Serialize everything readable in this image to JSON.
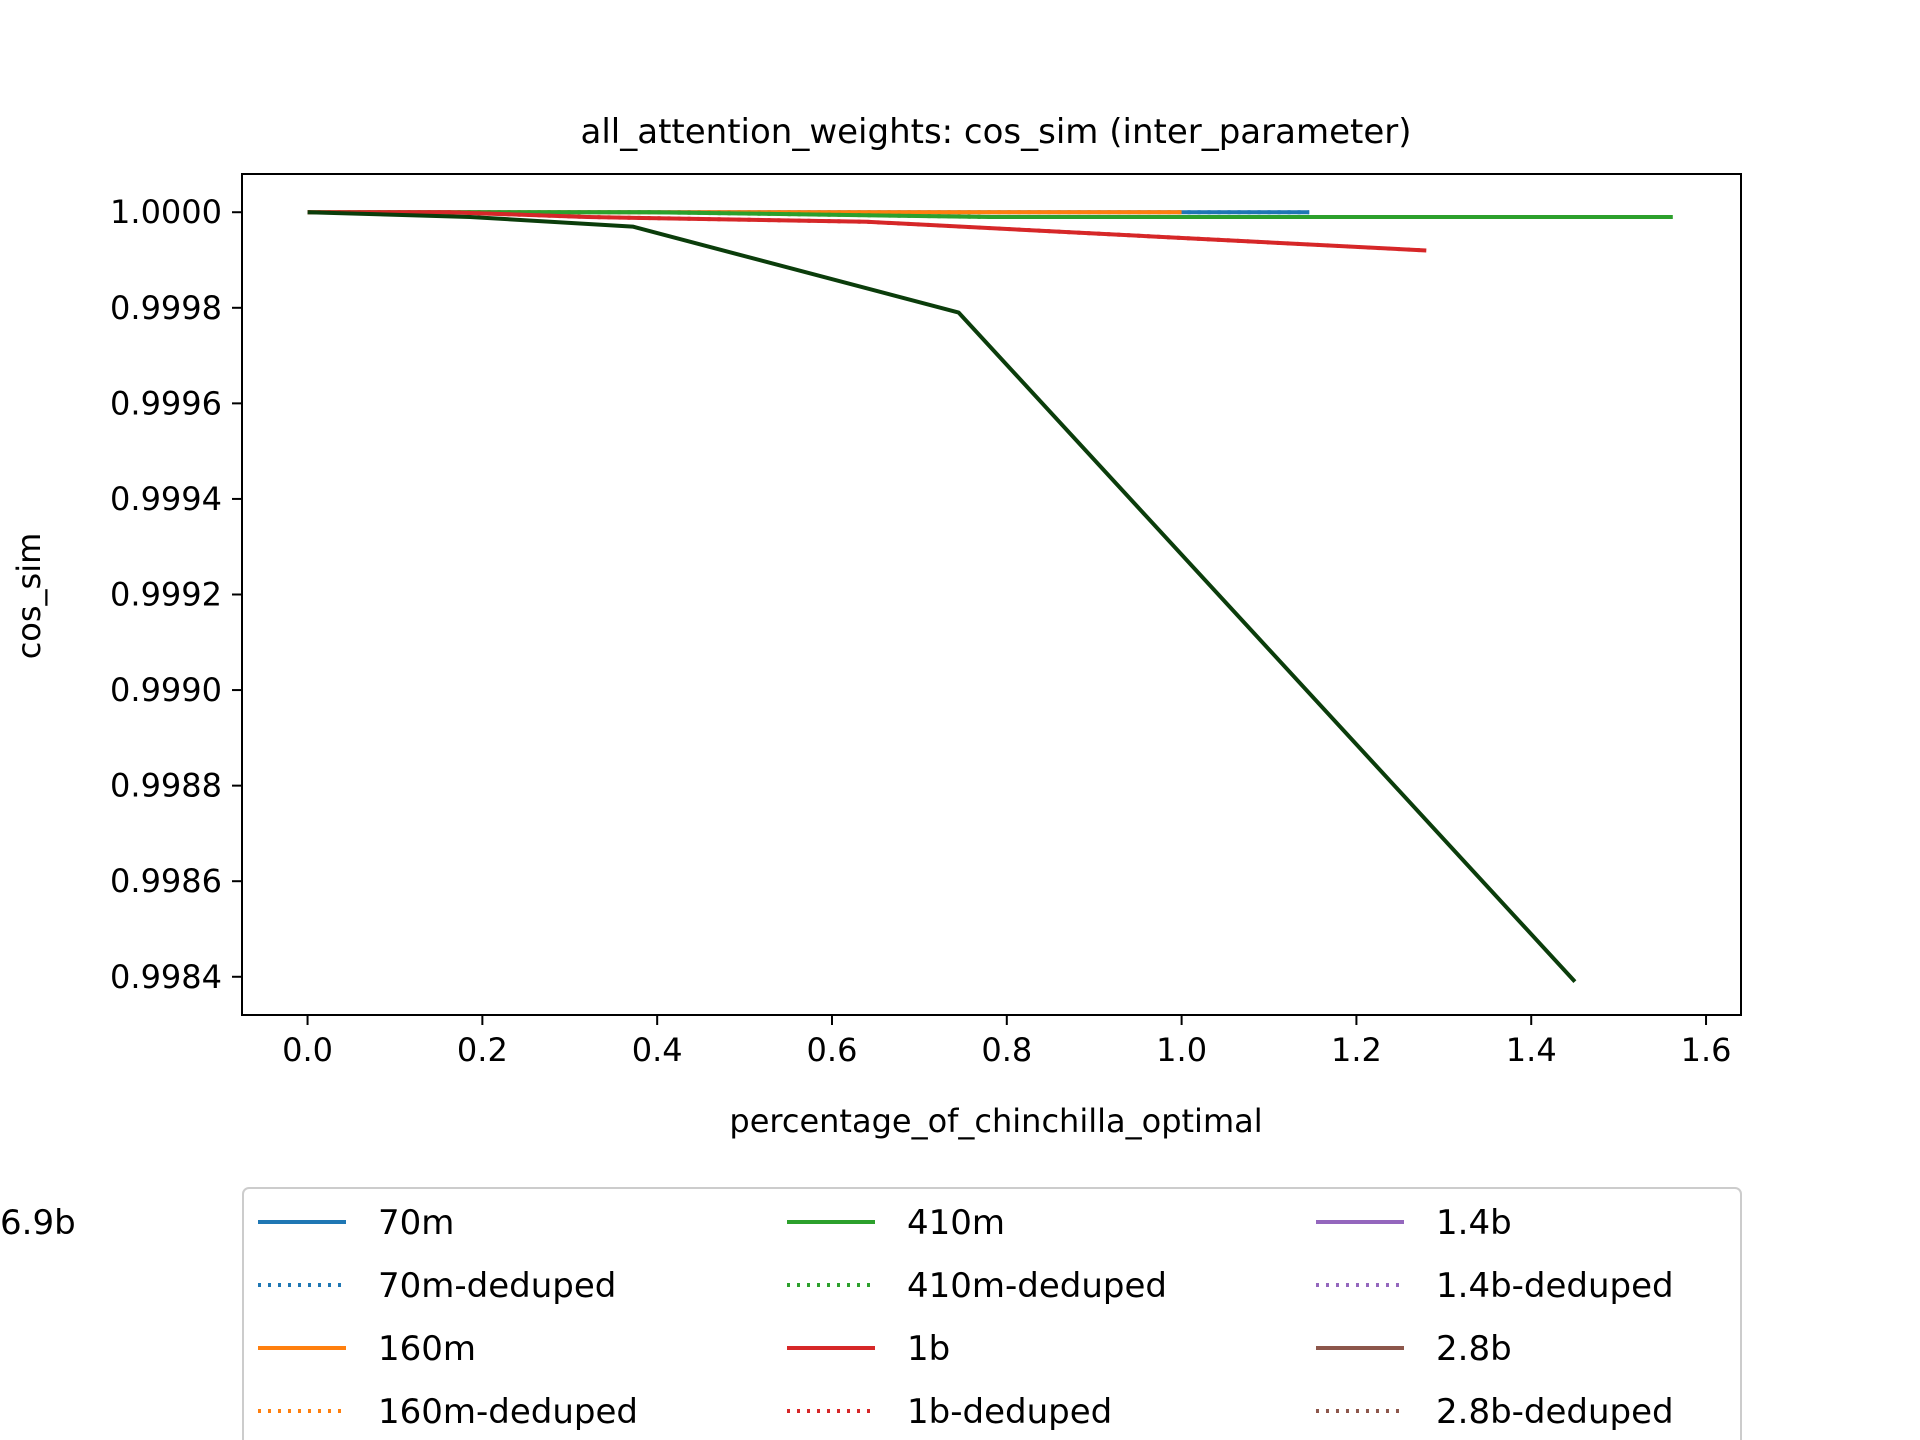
{
  "chart_data": {
    "type": "line",
    "title": "all_attention_weights: cos_sim (inter_parameter)",
    "xlabel": "percentage_of_chinchilla_optimal",
    "ylabel": "cos_sim",
    "xlim": [
      -0.075,
      1.64
    ],
    "ylim": [
      0.99832,
      1.00008
    ],
    "xticks": [
      0.0,
      0.2,
      0.4,
      0.6,
      0.8,
      1.0,
      1.2,
      1.4,
      1.6
    ],
    "xtick_labels": [
      "0.0",
      "0.2",
      "0.4",
      "0.6",
      "0.8",
      "1.0",
      "1.2",
      "1.4",
      "1.6"
    ],
    "yticks": [
      1.0,
      0.9998,
      0.9996,
      0.9994,
      0.9992,
      0.999,
      0.9988,
      0.9986,
      0.9984
    ],
    "ytick_labels": [
      "1.0000",
      "0.9998",
      "0.9996",
      "0.9994",
      "0.9992",
      "0.9990",
      "0.9988",
      "0.9986",
      "0.9984"
    ],
    "grid": false,
    "legend": {
      "placement": "below",
      "columns": 3
    },
    "series": [
      {
        "name": "70m",
        "color": "#1f77b4",
        "style": "solid",
        "x": [
          0.0,
          0.143,
          0.287,
          0.573,
          1.146
        ],
        "y": [
          1.0,
          1.0,
          1.0,
          1.0,
          1.0
        ]
      },
      {
        "name": "70m-deduped",
        "color": "#1f77b4",
        "style": "dotted",
        "x": [
          0.0,
          0.143,
          0.287,
          0.573,
          1.146
        ],
        "y": [
          1.0,
          1.0,
          1.0,
          1.0,
          1.0
        ]
      },
      {
        "name": "160m",
        "color": "#ff7f0e",
        "style": "solid",
        "x": [
          0.0,
          0.125,
          0.25,
          0.5,
          1.0
        ],
        "y": [
          1.0,
          1.0,
          1.0,
          1.0,
          1.0
        ]
      },
      {
        "name": "160m-deduped",
        "color": "#ff7f0e",
        "style": "dotted",
        "x": [
          0.0,
          0.125,
          0.25,
          0.5,
          1.0
        ],
        "y": [
          1.0,
          1.0,
          1.0,
          1.0,
          1.0
        ]
      },
      {
        "name": "410m",
        "color": "#2ca02c",
        "style": "solid",
        "x": [
          0.0,
          0.195,
          0.39,
          0.781,
          1.562
        ],
        "y": [
          1.0,
          1.0,
          1.0,
          0.99999,
          0.99999
        ]
      },
      {
        "name": "410m-deduped",
        "color": "#2ca02c",
        "style": "dotted",
        "x": [
          0.0,
          0.195,
          0.39,
          0.781,
          1.562
        ],
        "y": [
          1.0,
          1.0,
          1.0,
          0.99999,
          0.99999
        ]
      },
      {
        "name": "1b",
        "color": "#d62728",
        "style": "solid",
        "x": [
          0.0,
          0.16,
          0.32,
          0.64,
          1.28
        ],
        "y": [
          1.0,
          1.0,
          0.99999,
          0.99998,
          0.99992
        ]
      },
      {
        "name": "1b-deduped",
        "color": "#d62728",
        "style": "dotted",
        "x": [
          0.0,
          0.16,
          0.32,
          0.64,
          1.28
        ],
        "y": [
          1.0,
          1.0,
          0.99999,
          0.99998,
          0.99992
        ]
      },
      {
        "name": "1.4b",
        "color": "#9467bd",
        "style": "solid",
        "x": [],
        "y": []
      },
      {
        "name": "1.4b-deduped",
        "color": "#9467bd",
        "style": "dotted",
        "x": [],
        "y": []
      },
      {
        "name": "2.8b",
        "color": "#8c564b",
        "style": "solid",
        "x": [],
        "y": []
      },
      {
        "name": "2.8b-deduped",
        "color": "#8c564b",
        "style": "dotted",
        "x": [],
        "y": []
      },
      {
        "name": "6.9b",
        "color": "#0b3d0b",
        "style": "solid",
        "x": [
          0.0,
          0.186,
          0.372,
          0.745,
          1.45
        ],
        "y": [
          1.0,
          0.99999,
          0.99997,
          0.99979,
          0.99839
        ]
      }
    ]
  }
}
